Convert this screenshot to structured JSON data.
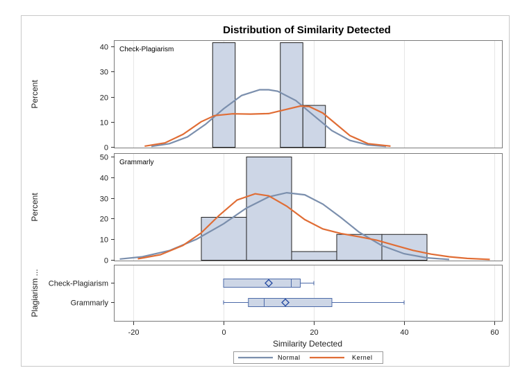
{
  "chart_data": {
    "type": "histogram",
    "title": "Distribution of Similarity Detected",
    "xlabel": "Similarity Detected",
    "xlim": [
      -25,
      62
    ],
    "xticks": [
      -20,
      0,
      20,
      40,
      60
    ],
    "panels": [
      {
        "label": "Check-Plagiarism",
        "ylabel": "Percent",
        "ylim": [
          0,
          42
        ],
        "yticks": [
          0,
          10,
          20,
          30,
          40
        ],
        "bins": [
          {
            "x0": -2.5,
            "x1": 2.5,
            "percent": 41.7
          },
          {
            "x0": 12.5,
            "x1": 17.5,
            "percent": 41.7
          },
          {
            "x0": 17.5,
            "x1": 22.5,
            "percent": 16.7
          }
        ],
        "normal_curve": [
          [
            -16,
            0.2
          ],
          [
            -12,
            1.3
          ],
          [
            -8,
            4.0
          ],
          [
            -4,
            9.0
          ],
          [
            0,
            15.2
          ],
          [
            4,
            20.5
          ],
          [
            8,
            22.8
          ],
          [
            10,
            22.8
          ],
          [
            12,
            22.2
          ],
          [
            16,
            18.5
          ],
          [
            20,
            12.5
          ],
          [
            24,
            6.5
          ],
          [
            28,
            2.6
          ],
          [
            32,
            0.8
          ],
          [
            36,
            0.2
          ]
        ],
        "kernel_curve": [
          [
            -17.5,
            0.3
          ],
          [
            -13,
            1.6
          ],
          [
            -9,
            5.0
          ],
          [
            -5,
            10.0
          ],
          [
            -2,
            12.5
          ],
          [
            2,
            13.2
          ],
          [
            6,
            13.1
          ],
          [
            10,
            13.3
          ],
          [
            14,
            15.0
          ],
          [
            17,
            16.3
          ],
          [
            19,
            16.1
          ],
          [
            22,
            13.5
          ],
          [
            25,
            9.0
          ],
          [
            28,
            4.5
          ],
          [
            32,
            1.3
          ],
          [
            37,
            0.3
          ]
        ]
      },
      {
        "label": "Grammarly",
        "ylabel": "Percent",
        "ylim": [
          0,
          50
        ],
        "yticks": [
          0,
          10,
          20,
          30,
          40,
          50
        ],
        "bins": [
          {
            "x0": -5,
            "x1": 5,
            "percent": 20.8
          },
          {
            "x0": 5,
            "x1": 15,
            "percent": 50.0
          },
          {
            "x0": 15,
            "x1": 25,
            "percent": 4.2
          },
          {
            "x0": 25,
            "x1": 35,
            "percent": 12.5
          },
          {
            "x0": 35,
            "x1": 45,
            "percent": 12.5
          }
        ],
        "normal_curve": [
          [
            -23,
            0.4
          ],
          [
            -18,
            1.5
          ],
          [
            -12,
            4.5
          ],
          [
            -6,
            10.0
          ],
          [
            0,
            17.5
          ],
          [
            5,
            25.0
          ],
          [
            10,
            30.5
          ],
          [
            14,
            32.5
          ],
          [
            18,
            31.5
          ],
          [
            22,
            27.0
          ],
          [
            26,
            20.5
          ],
          [
            30,
            13.5
          ],
          [
            35,
            7.0
          ],
          [
            40,
            3.0
          ],
          [
            45,
            1.0
          ],
          [
            50,
            0.2
          ]
        ],
        "kernel_curve": [
          [
            -19,
            0.5
          ],
          [
            -14,
            2.5
          ],
          [
            -9,
            7.0
          ],
          [
            -5,
            13.0
          ],
          [
            -1,
            21.5
          ],
          [
            3,
            29.0
          ],
          [
            7,
            32.0
          ],
          [
            10,
            31.0
          ],
          [
            14,
            26.0
          ],
          [
            18,
            19.5
          ],
          [
            22,
            15.0
          ],
          [
            26,
            12.8
          ],
          [
            30,
            11.2
          ],
          [
            34,
            9.5
          ],
          [
            38,
            7.0
          ],
          [
            42,
            4.6
          ],
          [
            46,
            2.8
          ],
          [
            50,
            1.5
          ],
          [
            54,
            0.7
          ],
          [
            59,
            0.2
          ]
        ]
      }
    ],
    "box_panel": {
      "ylabel": "Plagiarism ...",
      "groups": [
        {
          "label": "Check-Plagiarism",
          "min": 0,
          "q1": 0,
          "median": 15,
          "q3": 17,
          "max": 20,
          "mean": 10
        },
        {
          "label": "Grammarly",
          "min": 0,
          "q1": 5.5,
          "median": 9,
          "q3": 24,
          "max": 40,
          "mean": 13.7
        }
      ]
    },
    "legend": {
      "position": "bottom",
      "entries": [
        {
          "label": "Normal",
          "color": "#7b8fad"
        },
        {
          "label": "Kernel",
          "color": "#e06d35"
        }
      ]
    },
    "colors": {
      "bar_fill": "#cdd6e6",
      "box_fill": "#cdd6e6",
      "box_line": "#4c6aa8",
      "normal": "#7b8fad",
      "kernel": "#e06d35"
    },
    "grid": true
  }
}
